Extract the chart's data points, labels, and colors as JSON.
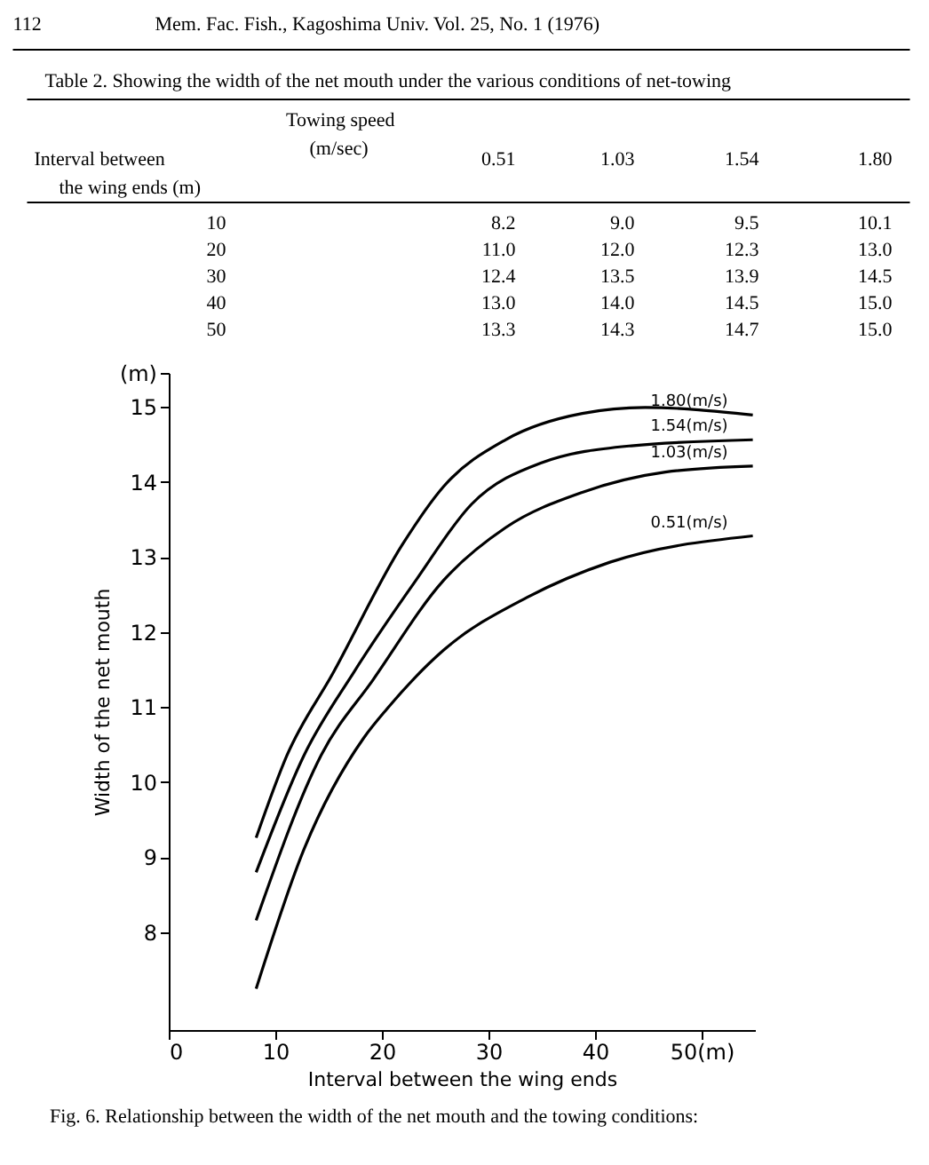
{
  "chart_data": {
    "type": "line",
    "xlabel": "Interval between the wing ends",
    "ylabel": "Width of the net mouth",
    "xlim": [
      0,
      55
    ],
    "xticks": [
      0,
      10,
      20,
      30,
      40,
      {
        "value": 50,
        "label": "50(m)"
      }
    ],
    "ylim": [
      6.7,
      15.45
    ],
    "yticks": [
      8,
      9,
      10,
      11,
      12,
      13,
      14,
      15,
      {
        "value": 15.45,
        "label": "(m)"
      }
    ],
    "grid": false,
    "legend": false,
    "marker": "none",
    "line_style": "solid",
    "series": [
      {
        "name": "1.80(m/s)",
        "color": "#000000",
        "x": [
          8.2,
          11.1,
          15.4,
          21.9,
          25.8,
          31.6,
          38.8,
          44.7,
          54.8
        ],
        "values": [
          9.26,
          10.36,
          11.45,
          13.16,
          13.94,
          14.56,
          14.91,
          14.99,
          14.89
        ]
      },
      {
        "name": "1.54(m/s)",
        "color": "#000000",
        "x": [
          8.2,
          12.7,
          17.3,
          23.2,
          28.4,
          34.9,
          43.4,
          54.8
        ],
        "values": [
          8.8,
          10.36,
          11.45,
          12.69,
          13.7,
          14.25,
          14.48,
          14.56
        ]
      },
      {
        "name": "1.03(m/s)",
        "color": "#000000",
        "x": [
          8.2,
          14.3,
          19.2,
          25.8,
          31.6,
          38.8,
          46.6,
          54.8
        ],
        "values": [
          8.16,
          10.36,
          11.37,
          12.69,
          13.39,
          13.86,
          14.13,
          14.21
        ]
      },
      {
        "name": "0.51(m/s)",
        "color": "#000000",
        "x": [
          8.2,
          12.7,
          18.3,
          20.5,
          25.8,
          33.6,
          41.4,
          54.8
        ],
        "values": [
          7.25,
          9.11,
          10.59,
          10.98,
          11.76,
          12.46,
          12.93,
          13.28
        ]
      }
    ],
    "annotations": [
      "112",
      "Mem. Fac. Fish., Kagoshima Univ. Vol. 25, No. 1 (1976)",
      "Table 2.  Showing the width of the net mouth under the various conditions of net-towing",
      "Towing speed",
      "(m/sec)",
      "Interval between",
      "the wing ends (m)",
      "0.51",
      "1.03",
      "1.54",
      "1.80",
      "10",
      "8.2",
      "9.0",
      "9.5",
      "10.1",
      "20",
      "11.0",
      "12.0",
      "12.3",
      "13.0",
      "30",
      "12.4",
      "13.5",
      "13.9",
      "14.5",
      "40",
      "13.0",
      "14.0",
      "14.5",
      "15.0",
      "50",
      "13.3",
      "14.3",
      "14.7",
      "15.0",
      "Fig. 6.  Relationship between the width of the net mouth and the towing conditions:"
    ]
  }
}
